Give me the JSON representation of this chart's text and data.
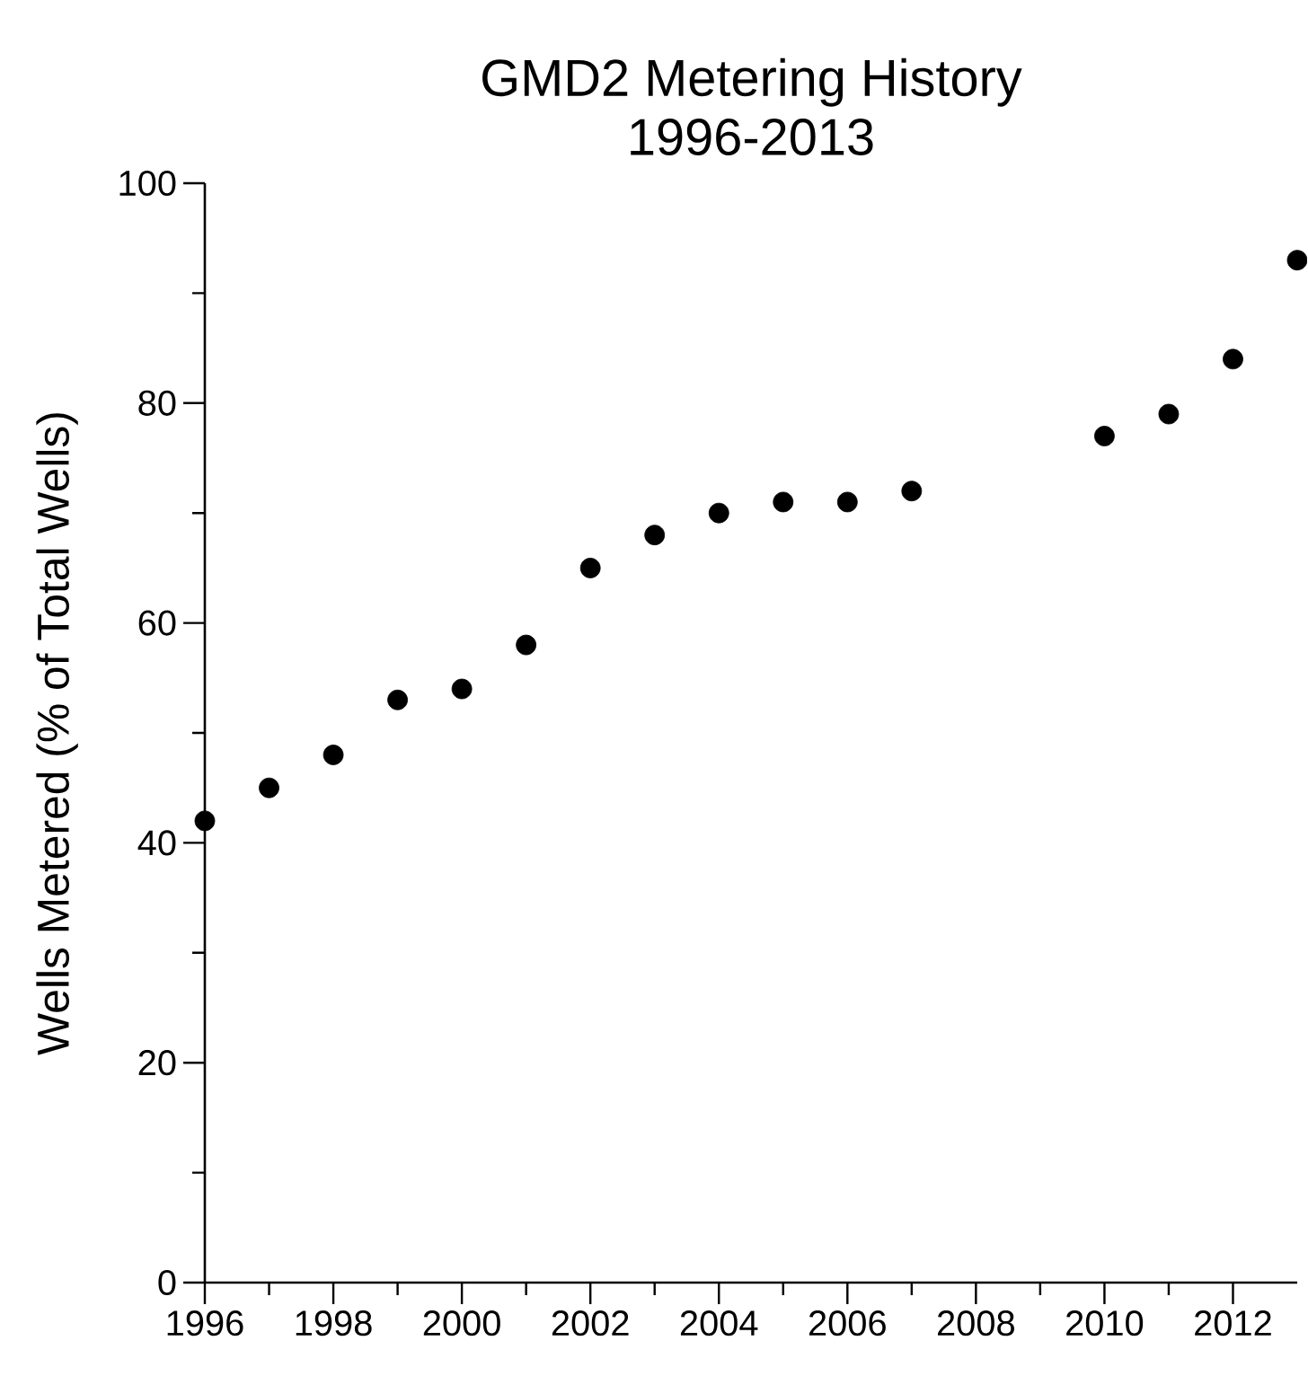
{
  "chart_data": {
    "type": "scatter",
    "title": "GMD2 Metering History\n1996-2013",
    "ylabel": "Wells Metered (% of Total Wells)",
    "x": [
      1996,
      1997,
      1998,
      1999,
      2000,
      2001,
      2002,
      2003,
      2004,
      2005,
      2006,
      2007,
      2010,
      2011,
      2012,
      2013
    ],
    "values": [
      42,
      45,
      48,
      53,
      54,
      58,
      65,
      68,
      70,
      71,
      71,
      72,
      77,
      79,
      84,
      93
    ],
    "color": "#000000",
    "marker": "circle",
    "xlim": [
      1996,
      2013
    ],
    "ylim": [
      0,
      100
    ],
    "xticks": [
      1996,
      {
        "value": 1997,
        "label": null
      },
      1998,
      {
        "value": 1999,
        "label": null
      },
      2000,
      {
        "value": 2001,
        "label": null
      },
      2002,
      {
        "value": 2003,
        "label": null
      },
      2004,
      {
        "value": 2005,
        "label": null
      },
      2006,
      {
        "value": 2007,
        "label": null
      },
      2008,
      {
        "value": 2009,
        "label": null
      },
      2010,
      {
        "value": 2011,
        "label": null
      },
      2012
    ],
    "yticks": [
      0,
      {
        "value": 10,
        "label": null
      },
      20,
      {
        "value": 30,
        "label": null
      },
      40,
      {
        "value": 50,
        "label": null
      },
      60,
      {
        "value": 70,
        "label": null
      },
      80,
      {
        "value": 90,
        "label": null
      },
      100
    ],
    "grid": false
  }
}
